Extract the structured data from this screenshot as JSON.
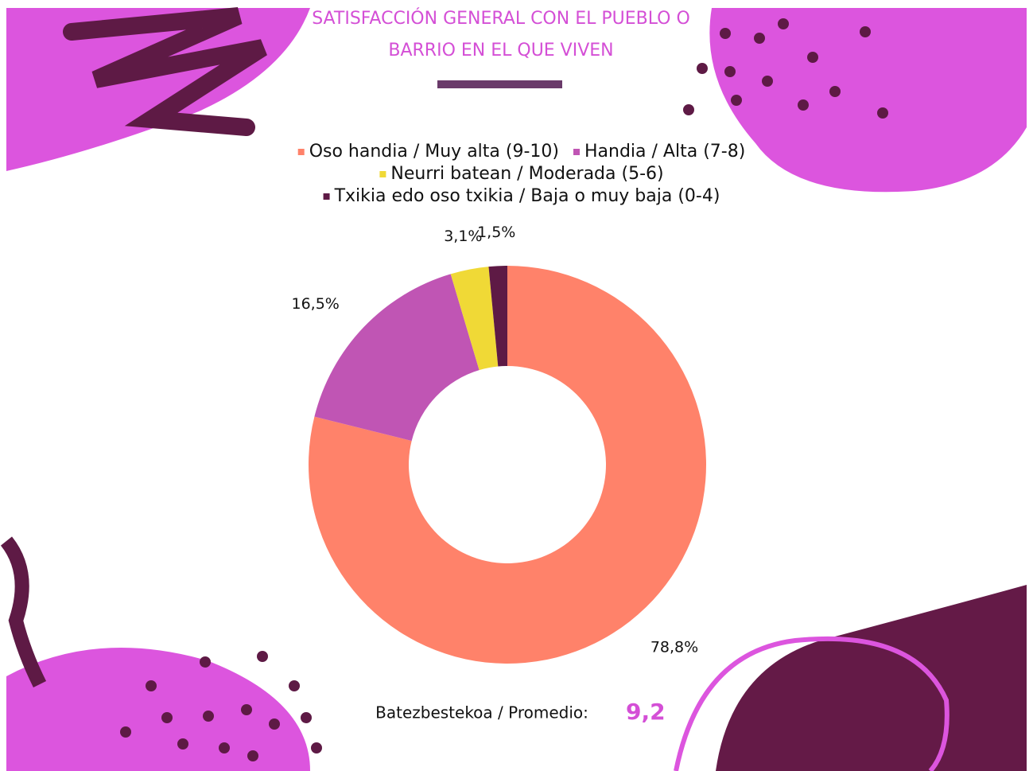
{
  "chart_data": {
    "type": "donut",
    "title": "SATISFACCIÓN GENERAL CON EL PUEBLO O BARRIO EN EL QUE VIVEN",
    "categories": [
      "Oso handia / Muy alta (9-10)",
      "Handia / Alta (7-8)",
      "Neurri batean / Moderada (5-6)",
      "Txikia edo oso txikia / Baja o muy baja (0-4)"
    ],
    "values": [
      78.8,
      16.5,
      3.1,
      1.5
    ],
    "value_labels": [
      "78,8%",
      "16,5%",
      "3,1%",
      "1,5%"
    ],
    "colors": [
      "#ff826a",
      "#c055b4",
      "#f0d936",
      "#5e1a45"
    ],
    "legend": "top",
    "annotation": {
      "text": "Batezbestekoa / Promedio:",
      "value": 9.2,
      "value_label": "9,2"
    }
  }
}
